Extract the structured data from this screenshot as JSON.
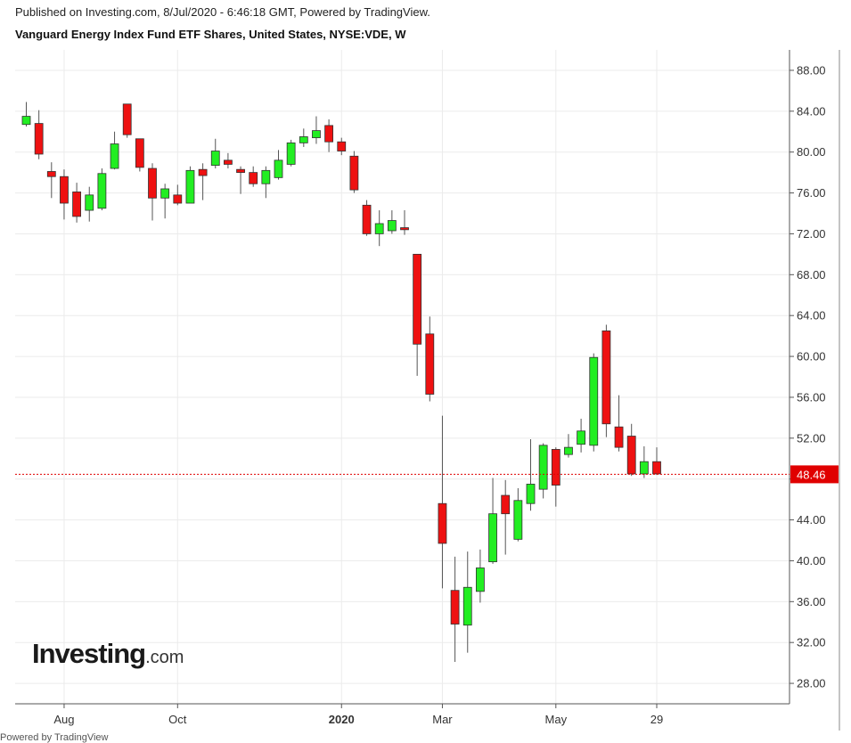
{
  "header": {
    "published": "Published on Investing.com, 8/Jul/2020 - 6:46:18 GMT, Powered by TradingView.",
    "title": "Vanguard Energy Index Fund ETF Shares, United States, NYSE:VDE, W"
  },
  "watermark": {
    "brand": "Investing",
    "suffix": ".com"
  },
  "colors": {
    "up": "#22ee22",
    "down": "#ee1111",
    "wick": "#555555",
    "last_price_line": "#e00000",
    "grid": "#ebebeb"
  },
  "chart_data": {
    "type": "candlestick",
    "interval": "W",
    "ylim": [
      26,
      90
    ],
    "y_ticks": [
      "28.00",
      "32.00",
      "36.00",
      "40.00",
      "44.00",
      "48.00",
      "52.00",
      "56.00",
      "60.00",
      "64.00",
      "68.00",
      "72.00",
      "76.00",
      "80.00",
      "84.00",
      "88.00"
    ],
    "x_ticks": [
      {
        "label": "Aug",
        "week": 3
      },
      {
        "label": "Oct",
        "week": 12
      },
      {
        "label": "2020",
        "week": 25,
        "bold": true
      },
      {
        "label": "Mar",
        "week": 33
      },
      {
        "label": "May",
        "week": 42
      },
      {
        "label": "29",
        "week": 50
      }
    ],
    "last_price": 48.46,
    "last_price_label": "48.46",
    "candles": [
      {
        "open": 82.7,
        "high": 84.9,
        "low": 82.5,
        "close": 83.5
      },
      {
        "open": 82.8,
        "high": 84.1,
        "low": 79.3,
        "close": 79.8
      },
      {
        "open": 78.1,
        "high": 79.0,
        "low": 75.5,
        "close": 77.6
      },
      {
        "open": 77.6,
        "high": 78.3,
        "low": 73.4,
        "close": 75.0
      },
      {
        "open": 76.1,
        "high": 77.0,
        "low": 73.1,
        "close": 73.7
      },
      {
        "open": 74.3,
        "high": 76.6,
        "low": 73.2,
        "close": 75.8
      },
      {
        "open": 74.5,
        "high": 78.4,
        "low": 74.3,
        "close": 77.9
      },
      {
        "open": 78.4,
        "high": 82.0,
        "low": 78.3,
        "close": 80.8
      },
      {
        "open": 84.7,
        "high": 84.7,
        "low": 81.4,
        "close": 81.7
      },
      {
        "open": 81.3,
        "high": 81.3,
        "low": 78.1,
        "close": 78.5
      },
      {
        "open": 78.4,
        "high": 78.9,
        "low": 73.3,
        "close": 75.5
      },
      {
        "open": 75.5,
        "high": 76.9,
        "low": 73.5,
        "close": 76.4
      },
      {
        "open": 75.8,
        "high": 76.8,
        "low": 74.8,
        "close": 75.0
      },
      {
        "open": 75.0,
        "high": 78.6,
        "low": 75.0,
        "close": 78.2
      },
      {
        "open": 78.3,
        "high": 78.9,
        "low": 75.3,
        "close": 77.7
      },
      {
        "open": 78.7,
        "high": 81.3,
        "low": 78.4,
        "close": 80.1
      },
      {
        "open": 79.2,
        "high": 79.9,
        "low": 78.4,
        "close": 78.8
      },
      {
        "open": 78.3,
        "high": 78.6,
        "low": 75.9,
        "close": 78.0
      },
      {
        "open": 78.0,
        "high": 78.6,
        "low": 76.6,
        "close": 76.9
      },
      {
        "open": 76.9,
        "high": 78.6,
        "low": 75.5,
        "close": 78.2
      },
      {
        "open": 77.5,
        "high": 80.2,
        "low": 77.3,
        "close": 79.2
      },
      {
        "open": 78.8,
        "high": 81.2,
        "low": 78.6,
        "close": 80.9
      },
      {
        "open": 80.9,
        "high": 82.3,
        "low": 80.5,
        "close": 81.5
      },
      {
        "open": 81.4,
        "high": 83.5,
        "low": 80.8,
        "close": 82.1
      },
      {
        "open": 82.6,
        "high": 83.2,
        "low": 80.0,
        "close": 81.0
      },
      {
        "open": 81.0,
        "high": 81.4,
        "low": 79.7,
        "close": 80.1
      },
      {
        "open": 79.6,
        "high": 80.1,
        "low": 76.0,
        "close": 76.3
      },
      {
        "open": 74.8,
        "high": 75.3,
        "low": 71.8,
        "close": 72.0
      },
      {
        "open": 72.0,
        "high": 74.3,
        "low": 70.8,
        "close": 73.0
      },
      {
        "open": 72.3,
        "high": 74.3,
        "low": 72.0,
        "close": 73.3
      },
      {
        "open": 72.6,
        "high": 74.3,
        "low": 71.9,
        "close": 72.4
      },
      {
        "open": 70.0,
        "high": 70.0,
        "low": 58.1,
        "close": 61.2
      },
      {
        "open": 62.2,
        "high": 63.9,
        "low": 55.6,
        "close": 56.3
      },
      {
        "open": 45.6,
        "high": 54.2,
        "low": 37.3,
        "close": 41.7
      },
      {
        "open": 37.1,
        "high": 40.4,
        "low": 30.1,
        "close": 33.8
      },
      {
        "open": 33.7,
        "high": 40.9,
        "low": 31.0,
        "close": 37.4
      },
      {
        "open": 37.0,
        "high": 41.1,
        "low": 35.9,
        "close": 39.3
      },
      {
        "open": 39.9,
        "high": 48.1,
        "low": 39.7,
        "close": 44.6
      },
      {
        "open": 46.4,
        "high": 47.9,
        "low": 40.6,
        "close": 44.6
      },
      {
        "open": 42.1,
        "high": 47.1,
        "low": 41.9,
        "close": 45.9
      },
      {
        "open": 45.6,
        "high": 51.9,
        "low": 44.9,
        "close": 47.5
      },
      {
        "open": 47.0,
        "high": 51.5,
        "low": 46.1,
        "close": 51.3
      },
      {
        "open": 50.9,
        "high": 51.1,
        "low": 45.3,
        "close": 47.4
      },
      {
        "open": 50.4,
        "high": 52.4,
        "low": 50.1,
        "close": 51.1
      },
      {
        "open": 51.4,
        "high": 53.9,
        "low": 50.6,
        "close": 52.7
      },
      {
        "open": 51.3,
        "high": 60.3,
        "low": 50.7,
        "close": 59.9
      },
      {
        "open": 62.5,
        "high": 63.1,
        "low": 52.1,
        "close": 53.4
      },
      {
        "open": 53.1,
        "high": 56.2,
        "low": 50.7,
        "close": 51.1
      },
      {
        "open": 52.2,
        "high": 53.4,
        "low": 48.3,
        "close": 48.5
      },
      {
        "open": 48.5,
        "high": 51.2,
        "low": 48.1,
        "close": 49.7
      },
      {
        "open": 49.7,
        "high": 51.1,
        "low": 48.4,
        "close": 48.5
      }
    ]
  },
  "footer": {
    "text": "Powered by TradingView"
  }
}
